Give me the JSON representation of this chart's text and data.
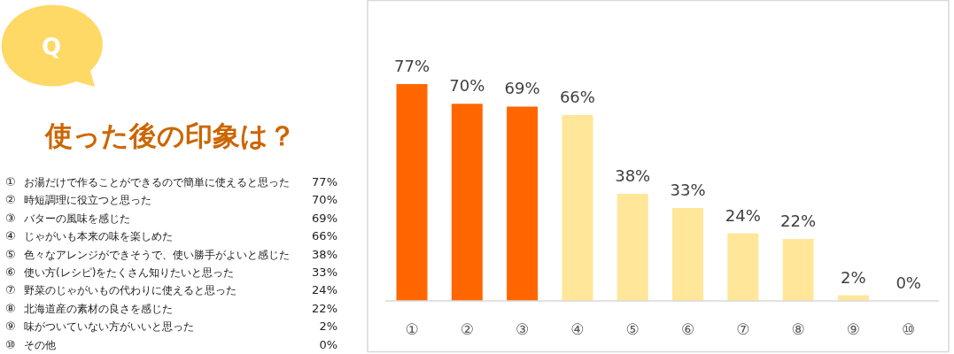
{
  "chart_data": {
    "type": "bar",
    "title": "使った後の印象は？",
    "categories": [
      "①",
      "②",
      "③",
      "④",
      "⑤",
      "⑥",
      "⑦",
      "⑧",
      "⑨",
      "⑩"
    ],
    "values": [
      77,
      70,
      69,
      66,
      38,
      33,
      24,
      22,
      2,
      0
    ],
    "value_labels": [
      "77%",
      "70%",
      "69%",
      "66%",
      "38%",
      "33%",
      "24%",
      "22%",
      "2%",
      "0%"
    ],
    "colors": [
      "#ff6600",
      "#ff6600",
      "#ff6600",
      "#ffe699",
      "#ffe699",
      "#ffe699",
      "#ffe699",
      "#ffe699",
      "#ffe699",
      "#ffe699"
    ],
    "annotations": [
      "Q",
      "お湯だけで作ることができるので簡単に使えると思った",
      "時短調理に役立つと思った",
      "バターの風味を感じた",
      "じゃがいも本来の味を楽しめた",
      "色々なアレンジができそうで、使い勝手がよいと感じた",
      "使い方(レシピ)をたくさん知りたいと思った",
      "野菜のじゃがいもの代わりに使えると思った",
      "北海道産の素材の良さを感じた",
      "味がついていない方がいいと思った",
      "その他"
    ]
  }
}
